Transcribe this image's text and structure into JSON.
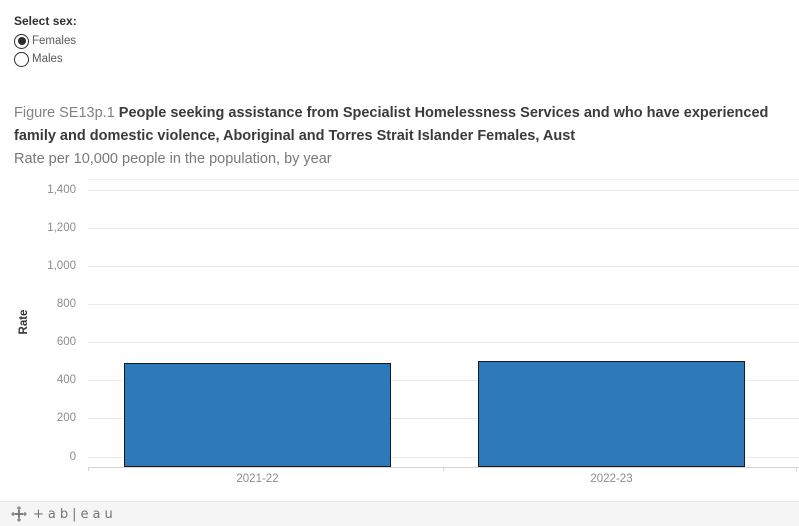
{
  "controls": {
    "label": "Select sex:",
    "options": [
      {
        "label": "Females",
        "selected": true
      },
      {
        "label": "Males",
        "selected": false
      }
    ]
  },
  "title": {
    "prefix": "Figure SE13p.1",
    "main": " People seeking assistance from Specialist Homelessness Services and who have experienced family and domestic violence, Aboriginal and Torres Strait Islander Females, Aust",
    "subtitle": "Rate per 10,000 people in the population, by year"
  },
  "chart_data": {
    "type": "bar",
    "categories": [
      "2021-22",
      "2022-23"
    ],
    "values": [
      490,
      500
    ],
    "title": "",
    "xlabel": "",
    "ylabel": "Rate",
    "ylim": [
      0,
      1400
    ],
    "yticks": [
      0,
      200,
      400,
      600,
      800,
      1000,
      1200,
      1400
    ],
    "ytick_labels": [
      "0",
      "200",
      "400",
      "600",
      "800",
      "1,000",
      "1,200",
      "1,400"
    ],
    "grid": true,
    "legend": false,
    "bar_color": "#2e79b9",
    "bar_border_color": "#1a1a1a"
  },
  "footer": {
    "wordmark": "+ab|eau"
  }
}
